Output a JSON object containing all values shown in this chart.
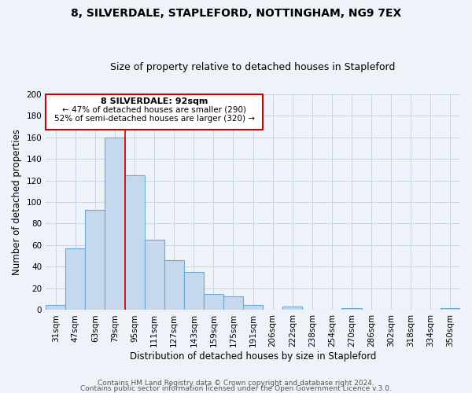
{
  "title1": "8, SILVERDALE, STAPLEFORD, NOTTINGHAM, NG9 7EX",
  "title2": "Size of property relative to detached houses in Stapleford",
  "xlabel": "Distribution of detached houses by size in Stapleford",
  "ylabel": "Number of detached properties",
  "bar_labels": [
    "31sqm",
    "47sqm",
    "63sqm",
    "79sqm",
    "95sqm",
    "111sqm",
    "127sqm",
    "143sqm",
    "159sqm",
    "175sqm",
    "191sqm",
    "206sqm",
    "222sqm",
    "238sqm",
    "254sqm",
    "270sqm",
    "286sqm",
    "302sqm",
    "318sqm",
    "334sqm",
    "350sqm"
  ],
  "bar_values": [
    5,
    57,
    93,
    160,
    125,
    65,
    46,
    35,
    15,
    13,
    5,
    0,
    3,
    0,
    0,
    2,
    0,
    0,
    0,
    0,
    2
  ],
  "bar_color": "#c5d8ed",
  "bar_edge_color": "#6aaad4",
  "ylim": [
    0,
    200
  ],
  "yticks": [
    0,
    20,
    40,
    60,
    80,
    100,
    120,
    140,
    160,
    180,
    200
  ],
  "pct_smaller": 47,
  "n_smaller": 290,
  "pct_larger_semi": 52,
  "n_larger_semi": 320,
  "vline_x_index": 4,
  "footer1": "Contains HM Land Registry data © Crown copyright and database right 2024.",
  "footer2": "Contains public sector information licensed under the Open Government Licence v.3.0.",
  "bg_color": "#eef2f9",
  "grid_color": "#c8d4e8",
  "annotation_box_color": "#ffffff",
  "annotation_box_edge_color": "#cc0000",
  "vline_color": "#cc0000",
  "title_fontsize": 10,
  "subtitle_fontsize": 9,
  "axis_label_fontsize": 8.5,
  "tick_fontsize": 7.5,
  "footer_fontsize": 6.5
}
